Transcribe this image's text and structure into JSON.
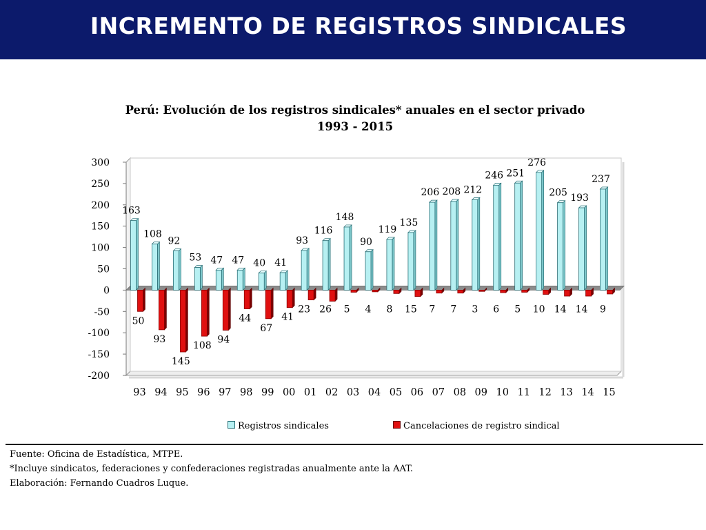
{
  "header": {
    "title": "INCREMENTO DE REGISTROS SINDICALES"
  },
  "chart_data": {
    "type": "bar",
    "title": "Perú: Evolución de los registros  sindicales*  anuales  en el sector privado",
    "subtitle": "1993 - 2015",
    "categories": [
      "93",
      "94",
      "95",
      "96",
      "97",
      "98",
      "99",
      "00",
      "01",
      "02",
      "03",
      "04",
      "05",
      "06",
      "07",
      "08",
      "09",
      "10",
      "11",
      "12",
      "13",
      "14",
      "15"
    ],
    "series": [
      {
        "name": "Registros sindicales",
        "color": "#b7f0f2",
        "values": [
          163,
          108,
          92,
          53,
          47,
          47,
          40,
          41,
          93,
          116,
          148,
          90,
          119,
          135,
          206,
          208,
          212,
          246,
          251,
          276,
          205,
          193,
          237
        ]
      },
      {
        "name": "Cancelaciones de registro sindical",
        "color": "#e01010",
        "values": [
          50,
          93,
          145,
          108,
          94,
          44,
          67,
          41,
          23,
          26,
          5,
          4,
          8,
          15,
          7,
          7,
          3,
          6,
          5,
          10,
          14,
          14,
          9
        ]
      }
    ],
    "yticks": [
      "300",
      "250",
      "200",
      "150",
      "100",
      "50",
      "0",
      "-50",
      "-100",
      "-150",
      "-200"
    ],
    "ylim": [
      -200,
      300
    ],
    "xlabel": "",
    "ylabel": "",
    "grid": false,
    "legend_position": "bottom"
  },
  "footer": {
    "source": "Fuente: Oficina de Estadística, MTPE.",
    "note": "*Incluye sindicatos, federaciones y confederaciones registradas anualmente ante la AAT.",
    "credit": "Elaboración: Fernando Cuadros Luque."
  }
}
